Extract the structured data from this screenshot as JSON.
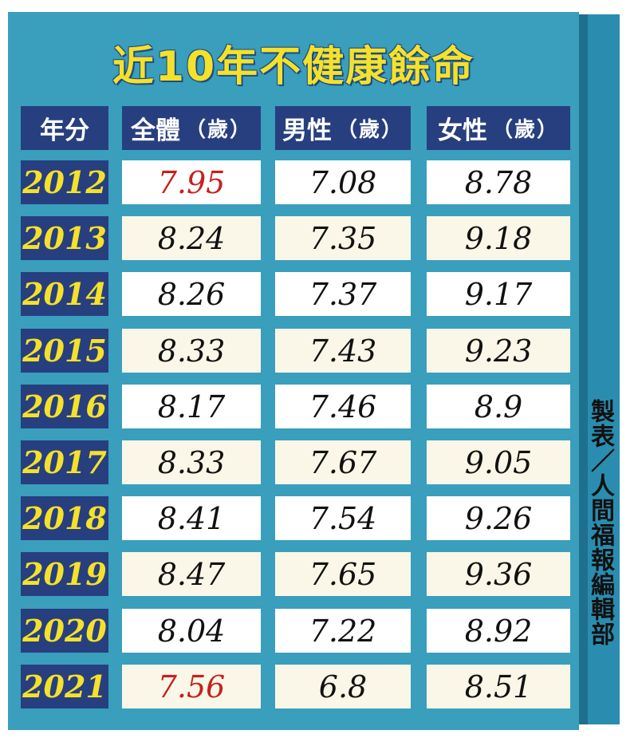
{
  "title": "近10年不健康餘命",
  "credit": "製表／人間福報編輯部",
  "headers": {
    "year": "年分",
    "total": "全體",
    "male": "男性",
    "female": "女性",
    "unit": "（歲）"
  },
  "colors": {
    "panel": "#3a9ebd",
    "header_bg": "#273f7f",
    "year_text": "#f5e12a",
    "title_text": "#f5e12a",
    "highlight": "#c8201e"
  },
  "chart_data": {
    "type": "table",
    "title": "近10年不健康餘命",
    "columns": [
      "年分",
      "全體（歲）",
      "男性（歲）",
      "女性（歲）"
    ],
    "rows": [
      {
        "year": "2012",
        "total": "7.95",
        "male": "7.08",
        "female": "8.78",
        "highlight_total": true
      },
      {
        "year": "2013",
        "total": "8.24",
        "male": "7.35",
        "female": "9.18",
        "highlight_total": false
      },
      {
        "year": "2014",
        "total": "8.26",
        "male": "7.37",
        "female": "9.17",
        "highlight_total": false
      },
      {
        "year": "2015",
        "total": "8.33",
        "male": "7.43",
        "female": "9.23",
        "highlight_total": false
      },
      {
        "year": "2016",
        "total": "8.17",
        "male": "7.46",
        "female": "8.9",
        "highlight_total": false
      },
      {
        "year": "2017",
        "total": "8.33",
        "male": "7.67",
        "female": "9.05",
        "highlight_total": false
      },
      {
        "year": "2018",
        "total": "8.41",
        "male": "7.54",
        "female": "9.26",
        "highlight_total": false
      },
      {
        "year": "2019",
        "total": "8.47",
        "male": "7.65",
        "female": "9.36",
        "highlight_total": false
      },
      {
        "year": "2020",
        "total": "8.04",
        "male": "7.22",
        "female": "8.92",
        "highlight_total": false
      },
      {
        "year": "2021",
        "total": "7.56",
        "male": "6.8",
        "female": "8.51",
        "highlight_total": true
      }
    ]
  }
}
